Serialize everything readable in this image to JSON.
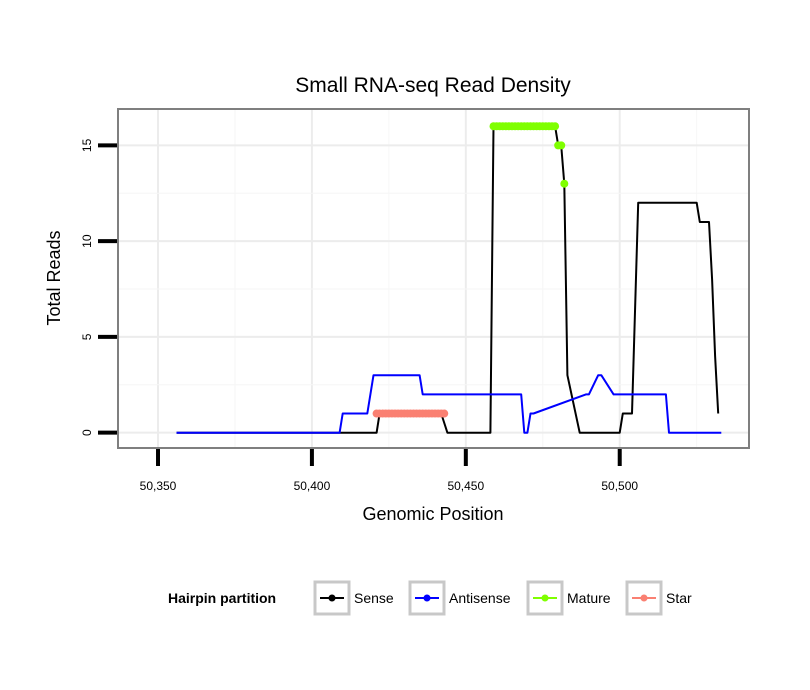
{
  "chart_data": {
    "type": "line",
    "title": "Small RNA-seq Read Density",
    "xlabel": "Genomic Position",
    "ylabel": "Total Reads",
    "xlim": [
      50337,
      50542
    ],
    "ylim": [
      -0.8,
      16.9
    ],
    "xticks": [
      50350,
      50400,
      50450,
      50500
    ],
    "xtick_labels": [
      "50,350",
      "50,400",
      "50,450",
      "50,500"
    ],
    "yticks": [
      0,
      5,
      10,
      15
    ],
    "ytick_labels": [
      "0",
      "5",
      "10",
      "15"
    ],
    "grid": true,
    "legend": {
      "title": "Hairpin partition",
      "placement": "bottom",
      "entries": [
        "Sense",
        "Antisense",
        "Mature",
        "Star"
      ]
    },
    "series": [
      {
        "name": "Sense",
        "color": "#000000",
        "style": "line",
        "x": [
          50356,
          50421,
          50422,
          50442,
          50444,
          50458,
          50459,
          50479,
          50480,
          50481,
          50482,
          50483,
          50487,
          50500,
          50501,
          50504,
          50506,
          50525,
          50526,
          50529,
          50530,
          50531,
          50532
        ],
        "y": [
          0,
          0,
          1,
          1,
          0,
          0,
          16,
          16,
          15,
          15,
          13,
          3,
          0,
          0,
          1,
          1,
          12,
          12,
          11,
          11,
          8,
          4,
          1
        ]
      },
      {
        "name": "Antisense",
        "color": "#0000ff",
        "style": "line",
        "x": [
          50356,
          50409,
          50410,
          50418,
          50420,
          50435,
          50436,
          50468,
          50469,
          50470,
          50471,
          50472,
          50489,
          50490,
          50493,
          50494,
          50498,
          50499,
          50515,
          50516,
          50533
        ],
        "y": [
          0,
          0,
          1,
          1,
          3,
          3,
          2,
          2,
          0,
          0,
          1,
          1,
          2,
          2,
          3,
          3,
          2,
          2,
          2,
          0,
          0
        ]
      },
      {
        "name": "Mature",
        "color": "#7fff00",
        "style": "points",
        "x": [
          50459,
          50460,
          50461,
          50462,
          50463,
          50464,
          50465,
          50466,
          50467,
          50468,
          50469,
          50470,
          50471,
          50472,
          50473,
          50474,
          50475,
          50476,
          50477,
          50478,
          50479,
          50480,
          50481,
          50482
        ],
        "y": [
          16,
          16,
          16,
          16,
          16,
          16,
          16,
          16,
          16,
          16,
          16,
          16,
          16,
          16,
          16,
          16,
          16,
          16,
          16,
          16,
          16,
          15,
          15,
          13
        ]
      },
      {
        "name": "Star",
        "color": "#fa8072",
        "style": "points",
        "x": [
          50421,
          50422,
          50423,
          50424,
          50425,
          50426,
          50427,
          50428,
          50429,
          50430,
          50431,
          50432,
          50433,
          50434,
          50435,
          50436,
          50437,
          50438,
          50439,
          50440,
          50441,
          50442,
          50443
        ],
        "y": [
          1,
          1,
          1,
          1,
          1,
          1,
          1,
          1,
          1,
          1,
          1,
          1,
          1,
          1,
          1,
          1,
          1,
          1,
          1,
          1,
          1,
          1,
          1
        ]
      }
    ]
  }
}
